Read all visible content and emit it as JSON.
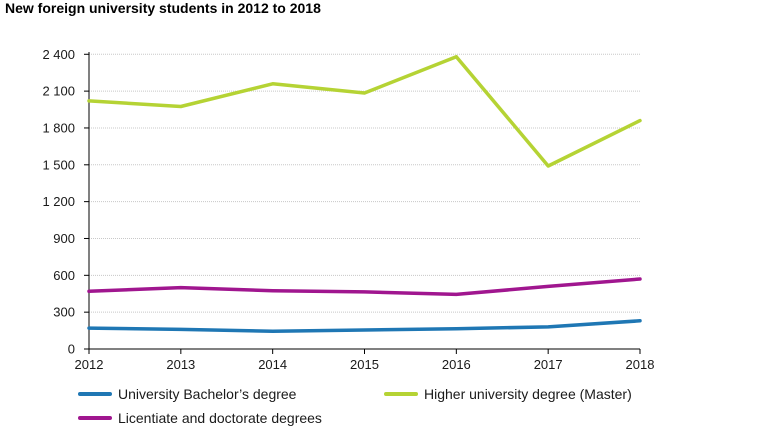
{
  "chart_data": {
    "type": "line",
    "title": "New foreign university students in 2012 to 2018",
    "xlabel": "",
    "ylabel": "",
    "x": [
      2012,
      2013,
      2014,
      2015,
      2016,
      2017,
      2018
    ],
    "x_tick_labels": [
      "2012",
      "2013",
      "2014",
      "2015",
      "2016",
      "2017",
      "2018"
    ],
    "y_tick_values": [
      0,
      300,
      600,
      900,
      1200,
      1500,
      1800,
      2100,
      2400
    ],
    "y_tick_labels": [
      "0",
      "300",
      "600",
      "900",
      "1 200",
      "1 500",
      "1 800",
      "2 100",
      "2 400"
    ],
    "ylim": [
      0,
      2500
    ],
    "grid": "horizontal",
    "legend_position": "bottom",
    "series": [
      {
        "name": "University Bachelor’s degree",
        "color": "#1f77b4",
        "values": [
          170,
          160,
          145,
          155,
          165,
          180,
          230
        ]
      },
      {
        "name": "Higher university degree (Master)",
        "color": "#b5d334",
        "values": [
          2020,
          1975,
          2160,
          2085,
          2380,
          1490,
          1860
        ]
      },
      {
        "name": "Licentiate and doctorate degrees",
        "color": "#a0168f",
        "values": [
          470,
          500,
          475,
          465,
          445,
          510,
          570
        ]
      }
    ]
  }
}
